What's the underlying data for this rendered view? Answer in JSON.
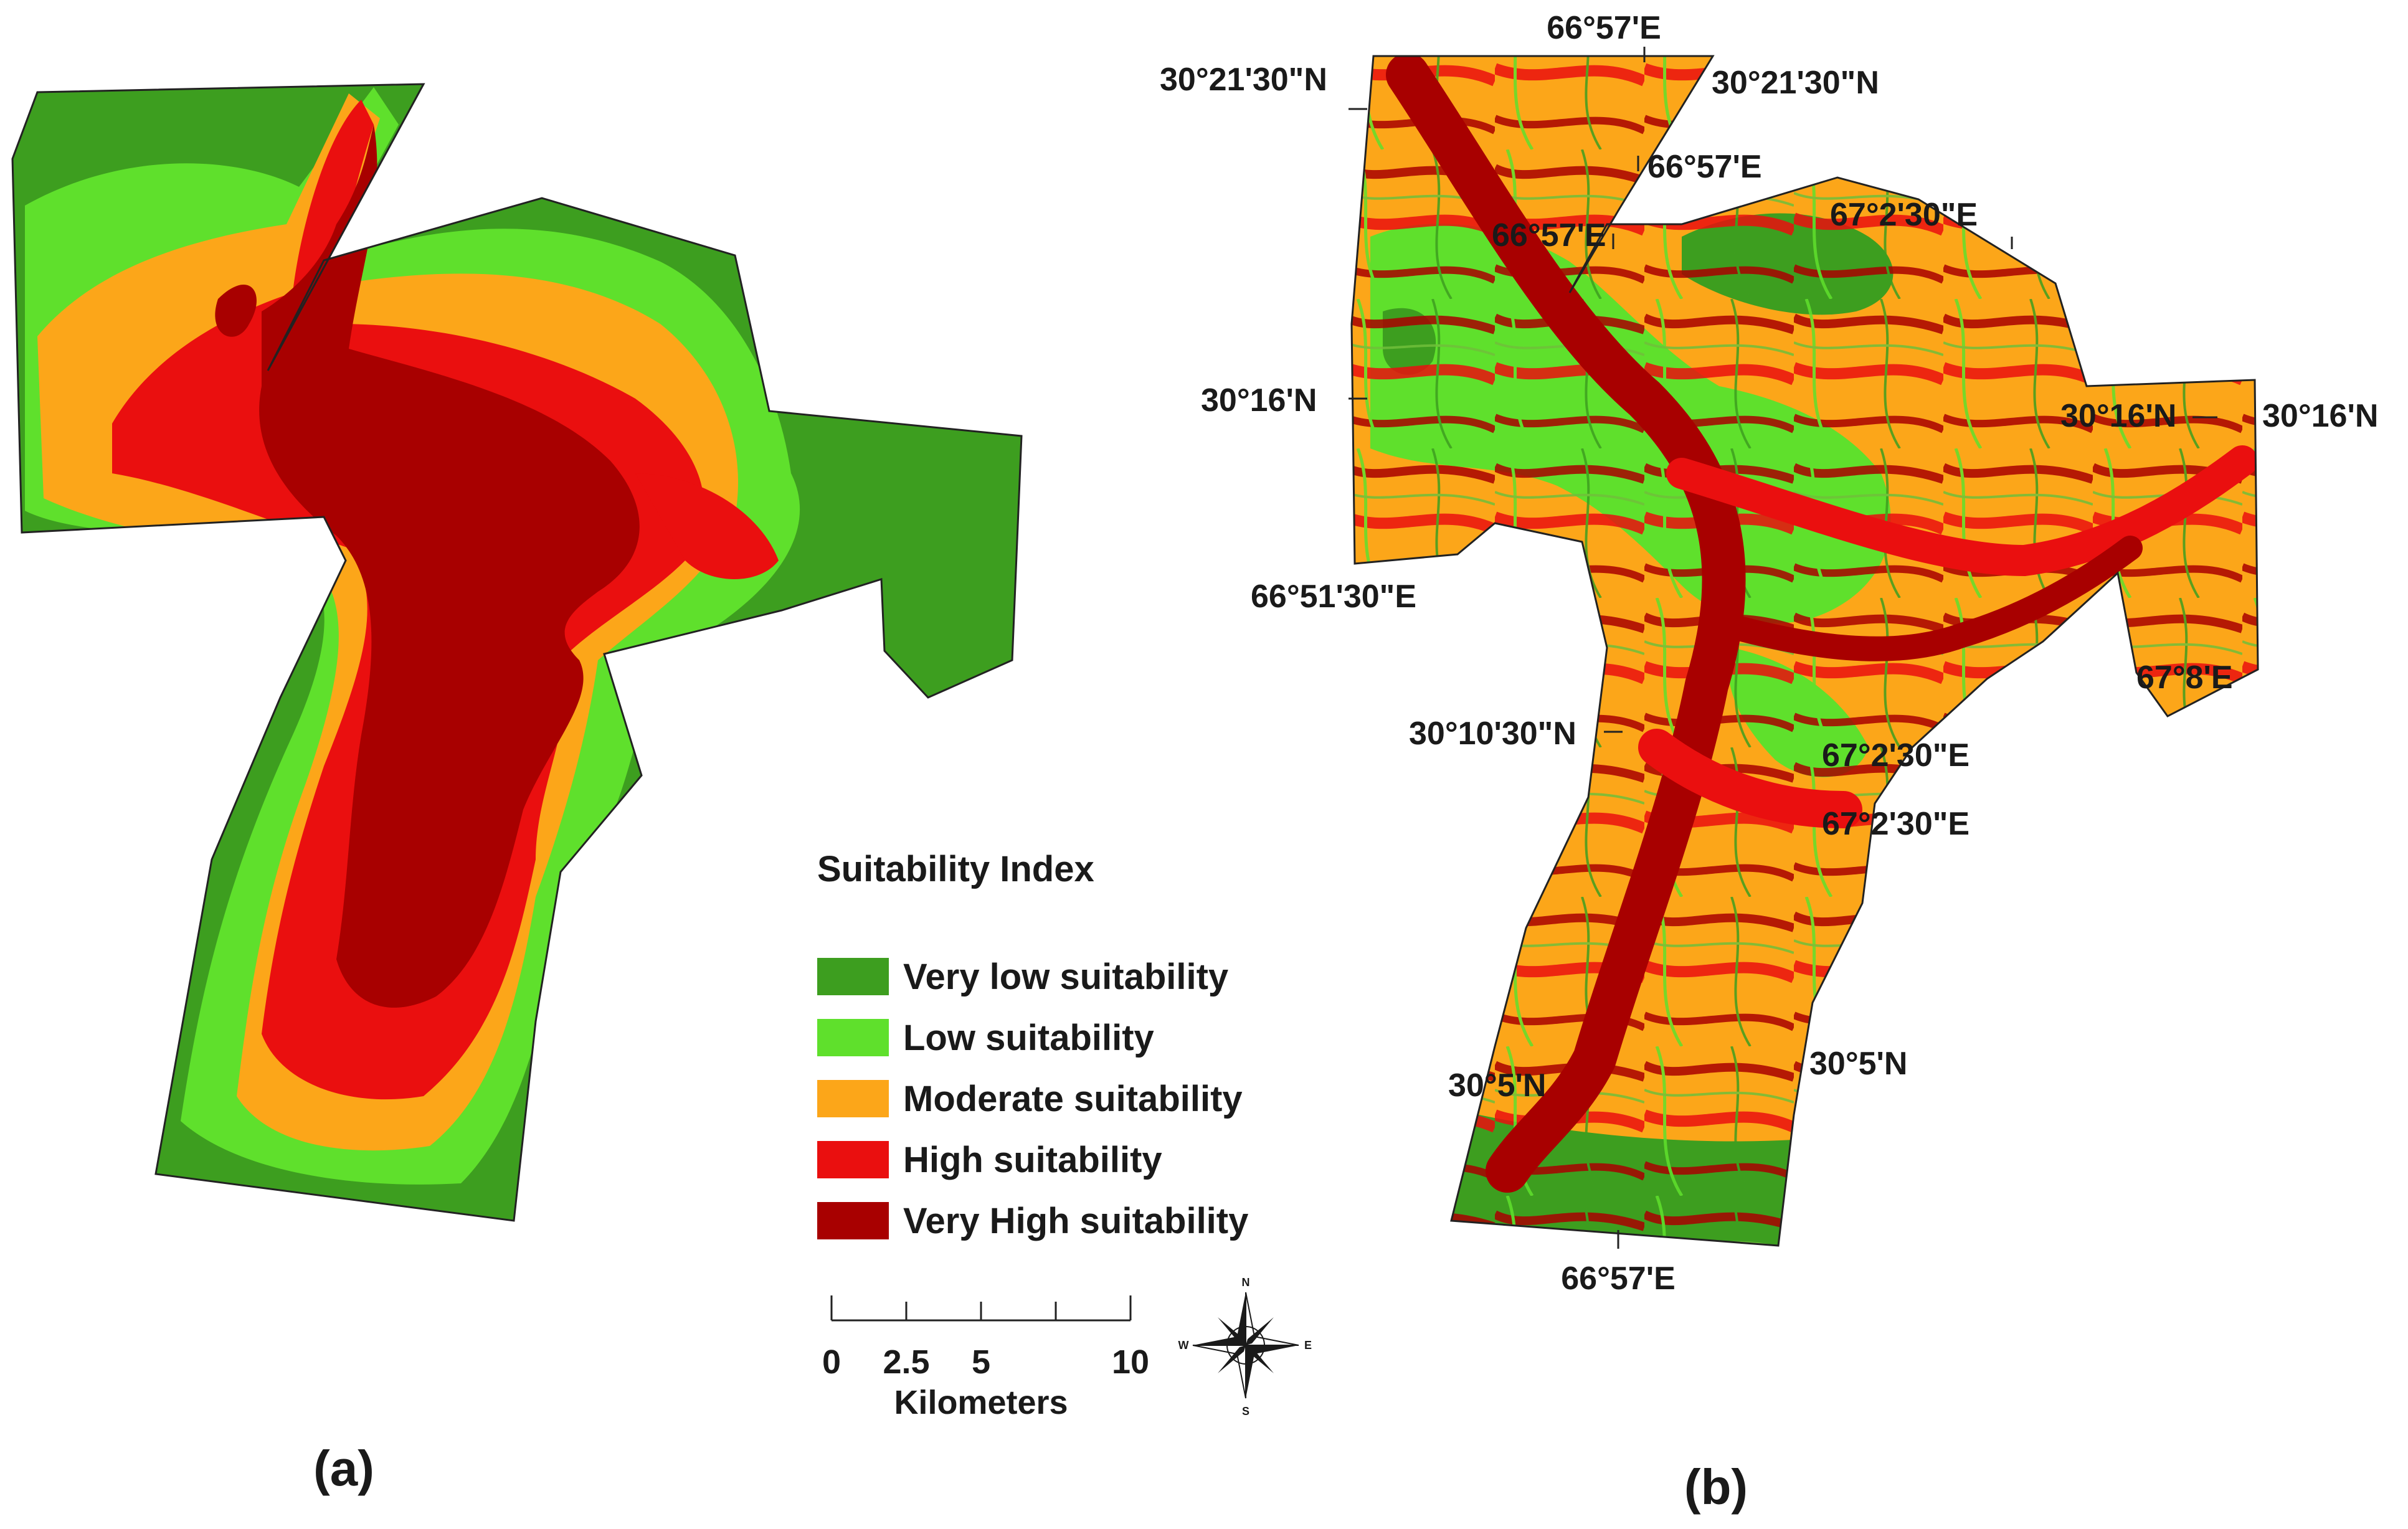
{
  "colors": {
    "very_low": "#3d9e1f",
    "low": "#5fe02c",
    "moderate": "#fca619",
    "high": "#ea0f0f",
    "very_high": "#a80000"
  },
  "panels": {
    "a": {
      "label": "(a)"
    },
    "b": {
      "label": "(b)"
    }
  },
  "coordinates": {
    "top_lon": "66°57'E",
    "top_left_lat": "30°21'30\"N",
    "top_right_lat": "30°21'30\"N",
    "inner_lon_1": "66°57'E",
    "inner_lon_2": "66°57'E",
    "top_right_lon": "67°2'30\"E",
    "left_lat_16": "30°16'N",
    "right_lat_16_a": "30°16'N",
    "right_lat_16_b": "30°16'N",
    "bottom_left_lon": "66°51'30\"E",
    "right_lon_8": "67°8'E",
    "left_lat_10": "30°10'30\"N",
    "mid_lon_1": "67°2'30\"E",
    "mid_lon_2": "67°2'30\"E",
    "lat_5_left": "30°5'N",
    "lat_5_right": "30°5'N",
    "bottom_lon": "66°57'E"
  },
  "legend": {
    "title": "Suitability Index",
    "items": [
      {
        "label": "Very low suitability",
        "color": "#3d9e1f"
      },
      {
        "label": "Low suitability",
        "color": "#5fe02c"
      },
      {
        "label": "Moderate suitability",
        "color": "#fca619"
      },
      {
        "label": "High suitability",
        "color": "#ea0f0f"
      },
      {
        "label": "Very High suitability",
        "color": "#a80000"
      }
    ]
  },
  "scale_bar": {
    "ticks": [
      "0",
      "2.5",
      "5",
      "10"
    ],
    "unit": "Kilometers"
  },
  "compass": {
    "n": "N",
    "s": "S",
    "e": "E",
    "w": "W"
  }
}
